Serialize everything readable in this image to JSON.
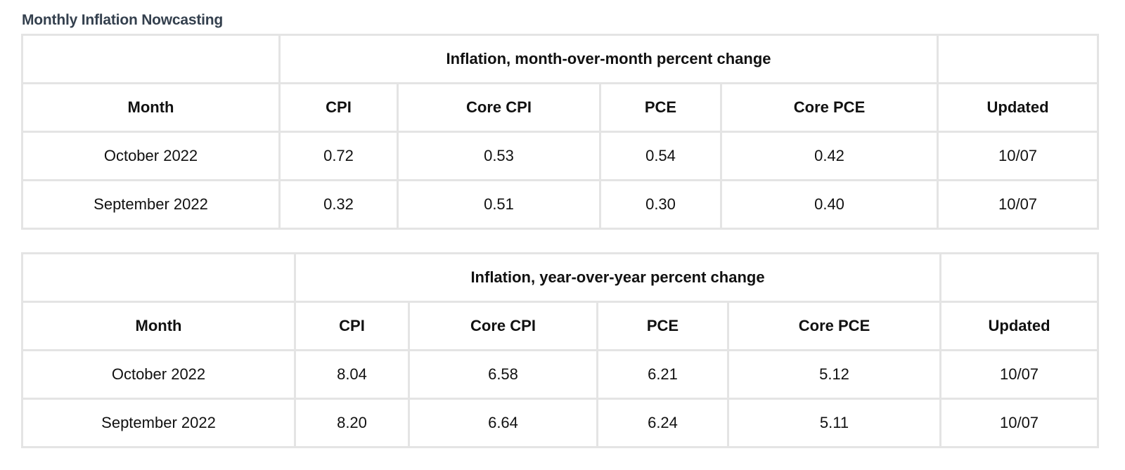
{
  "page": {
    "title": "Monthly Inflation Nowcasting"
  },
  "tables": [
    {
      "group_header": "Inflation, month-over-month percent change",
      "columns": [
        "Month",
        "CPI",
        "Core CPI",
        "PCE",
        "Core PCE",
        "Updated"
      ],
      "rows": [
        [
          "October 2022",
          "0.72",
          "0.53",
          "0.54",
          "0.42",
          "10/07"
        ],
        [
          "September 2022",
          "0.32",
          "0.51",
          "0.30",
          "0.40",
          "10/07"
        ]
      ]
    },
    {
      "group_header": "Inflation, year-over-year percent change",
      "columns": [
        "Month",
        "CPI",
        "Core CPI",
        "PCE",
        "Core PCE",
        "Updated"
      ],
      "rows": [
        [
          "October 2022",
          "8.04",
          "6.58",
          "6.21",
          "5.12",
          "10/07"
        ],
        [
          "September 2022",
          "8.20",
          "6.64",
          "6.24",
          "5.11",
          "10/07"
        ]
      ]
    }
  ],
  "colors": {
    "title": "#34404e",
    "border": "#e4e4e4",
    "text": "#111111"
  }
}
